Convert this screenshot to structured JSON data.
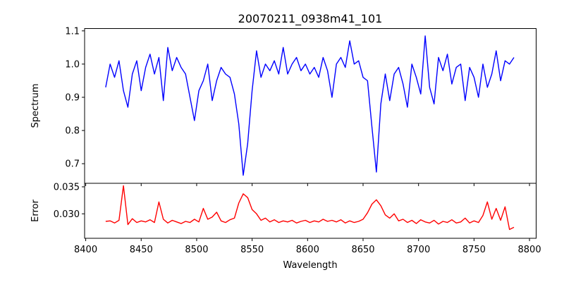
{
  "chart_data": [
    {
      "type": "line",
      "title": "20070211_0938m41_101",
      "xlabel": "",
      "ylabel": "Spectrum",
      "xlim": [
        8399,
        8806
      ],
      "ylim": [
        0.641,
        1.107
      ],
      "xticks": [
        8400,
        8450,
        8500,
        8550,
        8600,
        8650,
        8700,
        8750,
        8800
      ],
      "xtick_labels": [
        "8400",
        "8450",
        "8500",
        "8550",
        "8600",
        "8650",
        "8700",
        "8750",
        "8800"
      ],
      "yticks": [
        0.7,
        0.8,
        0.9,
        1.0,
        1.1
      ],
      "ytick_labels": [
        "0.7",
        "0.8",
        "0.9",
        "1.0",
        "1.1"
      ],
      "color": "#0000ff",
      "x_start": 8418,
      "x_step": 4,
      "values": [
        0.93,
        1.0,
        0.96,
        1.01,
        0.92,
        0.87,
        0.97,
        1.01,
        0.92,
        0.99,
        1.03,
        0.97,
        1.02,
        0.89,
        1.05,
        0.98,
        1.02,
        0.99,
        0.97,
        0.9,
        0.83,
        0.92,
        0.95,
        1.0,
        0.89,
        0.95,
        0.99,
        0.97,
        0.96,
        0.91,
        0.82,
        0.665,
        0.76,
        0.92,
        1.04,
        0.96,
        1.0,
        0.98,
        1.01,
        0.97,
        1.05,
        0.97,
        1.0,
        1.02,
        0.98,
        1.0,
        0.97,
        0.99,
        0.96,
        1.02,
        0.98,
        0.9,
        1.0,
        1.02,
        0.99,
        1.07,
        1.0,
        1.01,
        0.96,
        0.95,
        0.81,
        0.675,
        0.88,
        0.97,
        0.89,
        0.97,
        0.99,
        0.94,
        0.87,
        1.0,
        0.96,
        0.91,
        1.085,
        0.93,
        0.88,
        1.02,
        0.98,
        1.03,
        0.94,
        0.99,
        1.0,
        0.89,
        0.99,
        0.96,
        0.9,
        1.0,
        0.93,
        0.97,
        1.04,
        0.95,
        1.01,
        1.0,
        1.02
      ]
    },
    {
      "type": "line",
      "title": "",
      "xlabel": "Wavelength",
      "ylabel": "Error",
      "xlim": [
        8399,
        8806
      ],
      "ylim": [
        0.02547,
        0.03565
      ],
      "xticks": [
        8400,
        8450,
        8500,
        8550,
        8600,
        8650,
        8700,
        8750,
        8800
      ],
      "xtick_labels": [
        "8400",
        "8450",
        "8500",
        "8550",
        "8600",
        "8650",
        "8700",
        "8750",
        "8800"
      ],
      "yticks": [
        0.03,
        0.035
      ],
      "ytick_labels": [
        "0.030",
        "0.035"
      ],
      "color": "#ff0000",
      "x_start": 8418,
      "x_step": 4,
      "values": [
        0.0286,
        0.0287,
        0.0283,
        0.0288,
        0.0352,
        0.028,
        0.0291,
        0.0284,
        0.0287,
        0.0285,
        0.0289,
        0.0284,
        0.0322,
        0.029,
        0.0283,
        0.0288,
        0.0285,
        0.0282,
        0.0286,
        0.0284,
        0.029,
        0.0285,
        0.031,
        0.029,
        0.0294,
        0.0303,
        0.0287,
        0.0284,
        0.0289,
        0.0292,
        0.032,
        0.0337,
        0.033,
        0.0308,
        0.03,
        0.0288,
        0.0292,
        0.0285,
        0.0289,
        0.0284,
        0.0287,
        0.0285,
        0.0288,
        0.0283,
        0.0286,
        0.0288,
        0.0284,
        0.0287,
        0.0285,
        0.029,
        0.0286,
        0.0288,
        0.0285,
        0.0289,
        0.0283,
        0.0287,
        0.0284,
        0.0286,
        0.029,
        0.0302,
        0.0318,
        0.0326,
        0.0315,
        0.0298,
        0.0292,
        0.03,
        0.0287,
        0.029,
        0.0284,
        0.0288,
        0.0282,
        0.0289,
        0.0285,
        0.0283,
        0.0288,
        0.0281,
        0.0286,
        0.0284,
        0.0289,
        0.0283,
        0.0285,
        0.0292,
        0.0283,
        0.0287,
        0.0284,
        0.0297,
        0.0322,
        0.029,
        0.031,
        0.0288,
        0.0313,
        0.0271,
        0.0275
      ]
    }
  ]
}
